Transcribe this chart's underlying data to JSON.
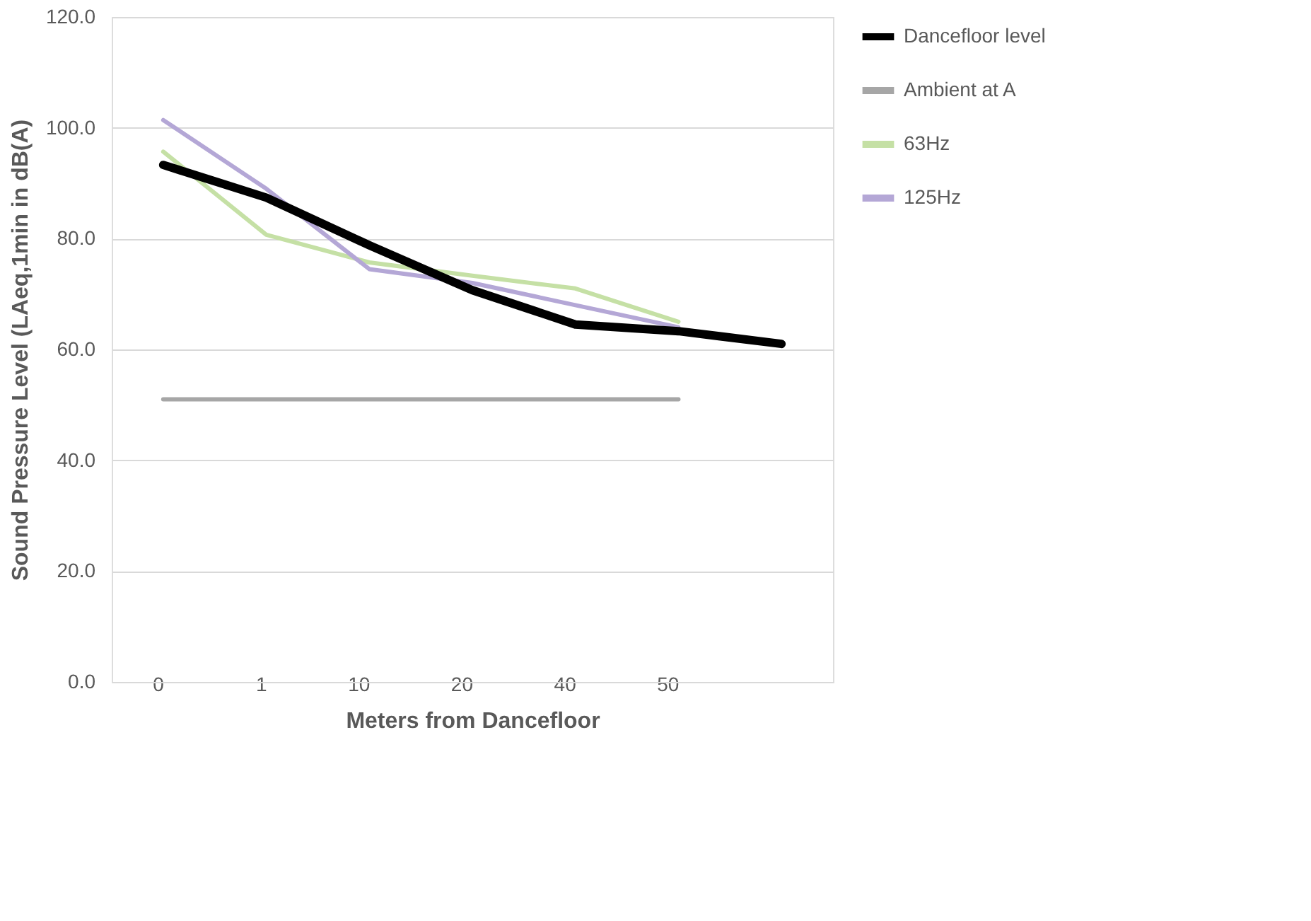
{
  "chart_data": {
    "type": "line",
    "xlabel": "Meters from Dancefloor",
    "ylabel": "Sound Pressure Level (LAeq,1min in dB(A)",
    "categories": [
      "0",
      "1",
      "10",
      "20",
      "40",
      "50",
      null
    ],
    "series": [
      {
        "name": "Dancefloor level",
        "color": "#000000",
        "values": [
          93.3,
          87.4,
          78.8,
          70.7,
          64.5,
          63.3,
          61.0
        ]
      },
      {
        "name": "Ambient at A",
        "color": "#a6a6a6",
        "values": [
          51.0,
          51.0,
          51.0,
          51.0,
          51.0,
          51.0,
          null
        ]
      },
      {
        "name": "63Hz",
        "color": "#c5e0a5",
        "values": [
          95.7,
          80.7,
          75.7,
          73.3,
          71.0,
          65.0,
          null
        ]
      },
      {
        "name": "125Hz",
        "color": "#b4a7d6",
        "values": [
          101.4,
          89.0,
          74.5,
          72.0,
          68.0,
          64.0,
          null
        ]
      }
    ],
    "ylim": [
      0,
      120
    ],
    "yticks": [
      {
        "value": 0,
        "label": "0.0"
      },
      {
        "value": 20,
        "label": "20.0"
      },
      {
        "value": 40,
        "label": "40.0"
      },
      {
        "value": 60,
        "label": "60.0"
      },
      {
        "value": 80,
        "label": "80.0"
      },
      {
        "value": 100,
        "label": "100.0"
      },
      {
        "value": 120,
        "label": "120.0"
      }
    ],
    "grid": "y",
    "legend": "right",
    "marker": "none",
    "line_style": "solid"
  }
}
